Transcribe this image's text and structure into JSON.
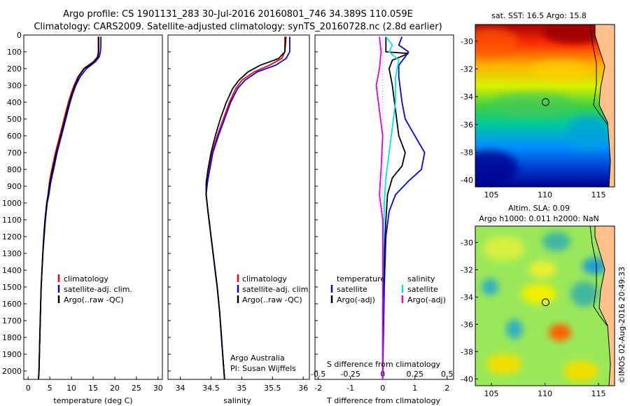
{
  "title": {
    "line1": "Argo profile: CS 1901131_283 30-Jul-2016 20160801_746 34.389S 110.059E",
    "line2": "Climatology: CARS2009. Satellite-adjusted climatology: synTS_20160728.nc (2.8d earlier)"
  },
  "colors": {
    "climatology": "#ff0000",
    "satellite": "#0000ff",
    "argo": "#000000",
    "sat_salinity": "#00e5e5",
    "argo_salinity_adj": "#e100e1"
  },
  "chart_data": [
    {
      "type": "line",
      "panel": "temperature",
      "xlabel": "temperature (deg C)",
      "ylabel": "",
      "xlim": [
        -1,
        31
      ],
      "ylim": [
        2050,
        0
      ],
      "xticks": [
        0,
        5,
        10,
        15,
        20,
        25,
        30
      ],
      "yticks": [
        0,
        100,
        200,
        300,
        400,
        500,
        600,
        700,
        800,
        900,
        1000,
        1100,
        1200,
        1300,
        1400,
        1500,
        1600,
        1700,
        1800,
        1900,
        2000
      ],
      "legend": [
        "climatology",
        "satellite-adj. clim.",
        "Argo(..raw -QC)"
      ],
      "series": [
        {
          "name": "climatology",
          "color": "#ff0000",
          "points": [
            [
              16.2,
              10
            ],
            [
              16.2,
              60
            ],
            [
              16.2,
              100
            ],
            [
              16,
              130
            ],
            [
              15,
              160
            ],
            [
              12.8,
              200
            ],
            [
              11.5,
              250
            ],
            [
              10.6,
              300
            ],
            [
              9.9,
              350
            ],
            [
              9.3,
              400
            ],
            [
              8.8,
              450
            ],
            [
              8.3,
              500
            ],
            [
              7.8,
              550
            ],
            [
              7.3,
              600
            ],
            [
              6.8,
              650
            ],
            [
              6.3,
              700
            ],
            [
              5.8,
              760
            ],
            [
              5.3,
              820
            ],
            [
              4.9,
              880
            ],
            [
              4.6,
              950
            ],
            [
              4.3,
              1000
            ],
            [
              3.9,
              1100
            ],
            [
              3.6,
              1200
            ],
            [
              3.4,
              1300
            ],
            [
              3.2,
              1400
            ],
            [
              3,
              1500
            ],
            [
              2.9,
              1600
            ],
            [
              2.8,
              1700
            ],
            [
              2.7,
              1800
            ],
            [
              2.6,
              1900
            ],
            [
              2.5,
              2000
            ],
            [
              2.4,
              2050
            ]
          ]
        },
        {
          "name": "satellite-adj. clim.",
          "color": "#0000ff",
          "points": [
            [
              16.8,
              10
            ],
            [
              16.8,
              60
            ],
            [
              16.7,
              100
            ],
            [
              16.4,
              130
            ],
            [
              15.5,
              160
            ],
            [
              13.5,
              200
            ],
            [
              12,
              250
            ],
            [
              11,
              300
            ],
            [
              10.3,
              350
            ],
            [
              9.7,
              400
            ],
            [
              9.2,
              450
            ],
            [
              8.7,
              500
            ],
            [
              8.2,
              550
            ],
            [
              7.7,
              600
            ],
            [
              7.2,
              650
            ],
            [
              6.7,
              700
            ],
            [
              6.2,
              760
            ],
            [
              5.7,
              820
            ],
            [
              5.2,
              880
            ],
            [
              4.8,
              950
            ],
            [
              4.4,
              1000
            ],
            [
              4,
              1100
            ],
            [
              3.7,
              1200
            ],
            [
              3.4,
              1300
            ],
            [
              3.2,
              1400
            ],
            [
              3,
              1500
            ],
            [
              2.9,
              1600
            ],
            [
              2.8,
              1700
            ],
            [
              2.7,
              1800
            ],
            [
              2.6,
              1900
            ],
            [
              2.5,
              2000
            ],
            [
              2.4,
              2050
            ]
          ]
        },
        {
          "name": "Argo(..raw -QC)",
          "color": "#000000",
          "points": [
            [
              16.3,
              10
            ],
            [
              16.3,
              60
            ],
            [
              16.3,
              100
            ],
            [
              16.1,
              130
            ],
            [
              15.2,
              160
            ],
            [
              13,
              200
            ],
            [
              11.6,
              250
            ],
            [
              10.8,
              300
            ],
            [
              10.1,
              350
            ],
            [
              9.5,
              400
            ],
            [
              9,
              450
            ],
            [
              8.5,
              500
            ],
            [
              8,
              550
            ],
            [
              7.5,
              600
            ],
            [
              7,
              650
            ],
            [
              6.5,
              700
            ],
            [
              6,
              760
            ],
            [
              5.5,
              820
            ],
            [
              5,
              880
            ],
            [
              4.6,
              950
            ],
            [
              4.3,
              1000
            ],
            [
              3.9,
              1100
            ],
            [
              3.6,
              1200
            ],
            [
              3.4,
              1300
            ],
            [
              3.2,
              1400
            ],
            [
              3,
              1500
            ],
            [
              2.9,
              1600
            ],
            [
              2.8,
              1700
            ],
            [
              2.7,
              1800
            ],
            [
              2.6,
              1900
            ],
            [
              2.5,
              2000
            ],
            [
              2.4,
              2050
            ]
          ]
        }
      ]
    },
    {
      "type": "line",
      "panel": "salinity",
      "xlabel": "salinity",
      "ylabel": "",
      "xlim": [
        33.8,
        36.1
      ],
      "ylim": [
        2050,
        0
      ],
      "xticks": [
        34,
        34.5,
        35,
        35.5,
        36
      ],
      "legend": [
        "climatology",
        "satellite-adj. clim.",
        "Argo(..raw -QC)"
      ],
      "annotation": [
        "Argo Australia",
        "PI: Susan Wijffels"
      ],
      "series": [
        {
          "name": "climatology",
          "color": "#ff0000",
          "points": [
            [
              35.7,
              10
            ],
            [
              35.7,
              100
            ],
            [
              35.65,
              140
            ],
            [
              35.45,
              180
            ],
            [
              35.2,
              220
            ],
            [
              35,
              270
            ],
            [
              34.9,
              320
            ],
            [
              34.8,
              400
            ],
            [
              34.7,
              500
            ],
            [
              34.6,
              600
            ],
            [
              34.52,
              700
            ],
            [
              34.47,
              800
            ],
            [
              34.43,
              880
            ],
            [
              34.42,
              950
            ],
            [
              34.45,
              1050
            ],
            [
              34.5,
              1200
            ],
            [
              34.55,
              1350
            ],
            [
              34.6,
              1500
            ],
            [
              34.64,
              1650
            ],
            [
              34.67,
              1800
            ],
            [
              34.7,
              1950
            ],
            [
              34.72,
              2050
            ]
          ]
        },
        {
          "name": "satellite-adj. clim.",
          "color": "#0000ff",
          "points": [
            [
              35.78,
              10
            ],
            [
              35.78,
              100
            ],
            [
              35.72,
              140
            ],
            [
              35.55,
              180
            ],
            [
              35.25,
              220
            ],
            [
              35.05,
              270
            ],
            [
              34.93,
              320
            ],
            [
              34.82,
              400
            ],
            [
              34.72,
              500
            ],
            [
              34.62,
              600
            ],
            [
              34.53,
              700
            ],
            [
              34.48,
              800
            ],
            [
              34.44,
              880
            ],
            [
              34.42,
              950
            ],
            [
              34.45,
              1050
            ],
            [
              34.5,
              1200
            ],
            [
              34.55,
              1350
            ],
            [
              34.6,
              1500
            ],
            [
              34.64,
              1650
            ],
            [
              34.67,
              1800
            ],
            [
              34.7,
              1950
            ],
            [
              34.72,
              2050
            ]
          ]
        },
        {
          "name": "Argo(..raw -QC)",
          "color": "#000000",
          "points": [
            [
              35.72,
              10
            ],
            [
              35.7,
              100
            ],
            [
              35.6,
              140
            ],
            [
              35.3,
              180
            ],
            [
              35.1,
              220
            ],
            [
              34.95,
              270
            ],
            [
              34.85,
              320
            ],
            [
              34.75,
              400
            ],
            [
              34.65,
              500
            ],
            [
              34.57,
              600
            ],
            [
              34.5,
              700
            ],
            [
              34.45,
              800
            ],
            [
              34.42,
              880
            ],
            [
              34.42,
              950
            ],
            [
              34.45,
              1050
            ],
            [
              34.5,
              1200
            ],
            [
              34.55,
              1350
            ],
            [
              34.6,
              1500
            ],
            [
              34.64,
              1650
            ],
            [
              34.67,
              1800
            ],
            [
              34.7,
              1950
            ],
            [
              34.72,
              2050
            ]
          ]
        }
      ]
    },
    {
      "type": "line",
      "panel": "difference",
      "xlabel": "T difference from climatology",
      "x2label": "S difference from climatology",
      "xlim": [
        -2.1,
        2.2
      ],
      "ylim": [
        2050,
        0
      ],
      "xticks": [
        -2,
        -1,
        0,
        1,
        2
      ],
      "x2ticks": [
        "-0.5",
        "-0.25",
        "0",
        "0.25",
        "0.5"
      ],
      "legend_temperature": [
        "temperature",
        "satellite",
        "Argo(-adj)"
      ],
      "legend_salinity": [
        "salinity",
        "satellite",
        "Argo(-adj)"
      ],
      "series": [
        {
          "name": "satellite",
          "variable": "temperature",
          "color": "#0000ff",
          "points": [
            [
              0.6,
              10
            ],
            [
              0.5,
              60
            ],
            [
              0.8,
              100
            ],
            [
              0.7,
              130
            ],
            [
              0.5,
              180
            ],
            [
              0.5,
              250
            ],
            [
              0.6,
              400
            ],
            [
              0.7,
              500
            ],
            [
              1,
              600
            ],
            [
              1.3,
              700
            ],
            [
              1.2,
              800
            ],
            [
              0.8,
              870
            ],
            [
              0.4,
              950
            ],
            [
              0.2,
              1050
            ],
            [
              0.1,
              1200
            ],
            [
              0.05,
              1500
            ],
            [
              0,
              2050
            ]
          ]
        },
        {
          "name": "Argo(-adj)",
          "variable": "temperature",
          "color": "#000000",
          "points": [
            [
              0.1,
              10
            ],
            [
              0.1,
              100
            ],
            [
              0.8,
              110
            ],
            [
              0.3,
              150
            ],
            [
              0.2,
              200
            ],
            [
              0.3,
              300
            ],
            [
              0.4,
              450
            ],
            [
              0.5,
              600
            ],
            [
              0.7,
              700
            ],
            [
              0.6,
              780
            ],
            [
              0.3,
              850
            ],
            [
              0.15,
              950
            ],
            [
              0.1,
              1100
            ],
            [
              0.05,
              1300
            ],
            [
              0,
              1600
            ],
            [
              0,
              2050
            ]
          ]
        },
        {
          "name": "satellite",
          "variable": "salinity",
          "color": "#00e5e5",
          "points": [
            [
              0.1,
              10
            ],
            [
              0.3,
              60
            ],
            [
              0.2,
              100
            ],
            [
              0.5,
              150
            ],
            [
              0.4,
              250
            ],
            [
              0.4,
              400
            ],
            [
              0.3,
              550
            ],
            [
              0.2,
              700
            ],
            [
              0.1,
              850
            ],
            [
              0.05,
              1000
            ],
            [
              0,
              1500
            ],
            [
              0,
              2050
            ]
          ]
        },
        {
          "name": "Argo(-adj)",
          "variable": "salinity",
          "color": "#e100e1",
          "points": [
            [
              -0.1,
              10
            ],
            [
              -0.05,
              100
            ],
            [
              -0.1,
              200
            ],
            [
              -0.2,
              300
            ],
            [
              -0.1,
              450
            ],
            [
              0,
              600
            ],
            [
              -0.05,
              800
            ],
            [
              -0.1,
              950
            ],
            [
              0,
              1100
            ],
            [
              0,
              2050
            ]
          ]
        }
      ]
    },
    {
      "type": "heatmap",
      "panel": "sst-map",
      "title": "sat. SST: 16.5 Argo: 15.8",
      "xticks": [
        105,
        110,
        115
      ],
      "yticks": [
        -30,
        -32,
        -34,
        -36,
        -38,
        -40
      ],
      "xlim": [
        103.5,
        116.5
      ],
      "ylim": [
        -40.5,
        -28.8
      ],
      "argo_position": [
        110.059,
        -34.389
      ],
      "colormap": "jet"
    },
    {
      "type": "heatmap",
      "panel": "sla-map",
      "title": "Altim. SLA: 0.09",
      "subtitle": "Argo h1000: 0.011 h2000: NaN",
      "xticks": [
        105,
        110,
        115
      ],
      "yticks": [
        -30,
        -32,
        -34,
        -36,
        -38,
        -40
      ],
      "xlim": [
        103.5,
        116.5
      ],
      "ylim": [
        -40.5,
        -28.8
      ],
      "argo_position": [
        110.059,
        -34.389
      ],
      "colormap": "jet"
    }
  ],
  "credit": "©IMOS 02-Aug-2016 20:49:33"
}
